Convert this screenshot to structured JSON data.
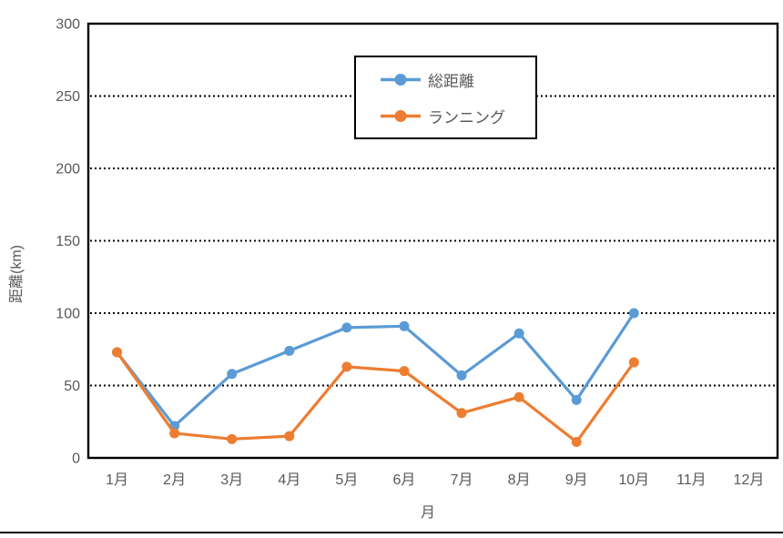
{
  "chart_data": {
    "type": "line",
    "title": "",
    "xlabel": "月",
    "ylabel": "距離(km)",
    "categories": [
      "1月",
      "2月",
      "3月",
      "4月",
      "5月",
      "6月",
      "7月",
      "8月",
      "9月",
      "10月",
      "11月",
      "12月"
    ],
    "series": [
      {
        "name": "総距離",
        "color": "#5B9BD5",
        "values": [
          73,
          22,
          58,
          74,
          90,
          91,
          57,
          86,
          40,
          100,
          null,
          null
        ]
      },
      {
        "name": "ランニング",
        "color": "#ED7D31",
        "values": [
          73,
          17,
          13,
          15,
          63,
          60,
          31,
          42,
          11,
          66,
          null,
          null
        ]
      }
    ],
    "ylim": [
      0,
      300
    ],
    "ytick_step": 50,
    "yticks": [
      0,
      50,
      100,
      150,
      200,
      250,
      300
    ],
    "grid": "horizontal-dotted",
    "legend_position": "top-center",
    "axis_text_color": "#595959",
    "grid_color": "#000000",
    "border_color": "#000000",
    "line_width": 3.2,
    "marker": "circle",
    "marker_radius": 5.5
  }
}
